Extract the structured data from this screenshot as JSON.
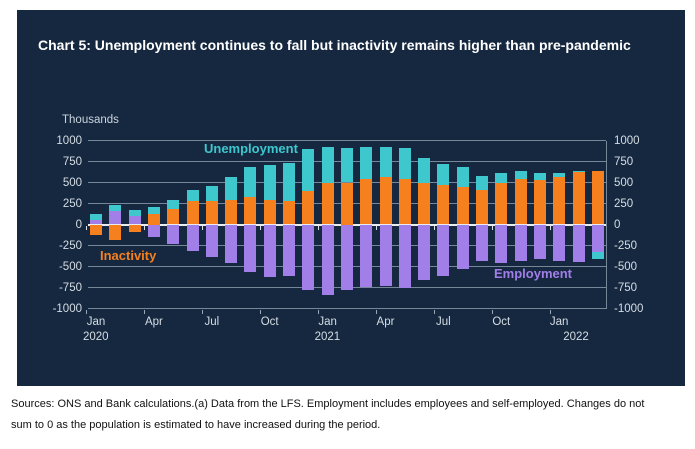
{
  "title": "Chart 5: Unemployment continues to fall but inactivity remains higher than pre-pandemic",
  "y_axis": {
    "unit_label": "Thousands",
    "ticks": [
      1000,
      750,
      500,
      250,
      0,
      -250,
      -500,
      -750,
      -1000
    ],
    "min": -1000,
    "max": 1000
  },
  "x_axis": {
    "ticks": [
      {
        "month": "Jan",
        "year": "2020",
        "month_index": 0
      },
      {
        "month": "Apr",
        "year": "",
        "month_index": 3
      },
      {
        "month": "Jul",
        "year": "",
        "month_index": 6
      },
      {
        "month": "Oct",
        "year": "",
        "month_index": 9
      },
      {
        "month": "Jan",
        "year": "2021",
        "month_index": 12
      },
      {
        "month": "Apr",
        "year": "",
        "month_index": 15
      },
      {
        "month": "Jul",
        "year": "",
        "month_index": 18
      },
      {
        "month": "Oct",
        "year": "",
        "month_index": 21
      },
      {
        "month": "Jan",
        "year": "2022",
        "month_index": 24
      }
    ]
  },
  "legend": {
    "unemployment": "Unemployment",
    "inactivity": "Inactivity",
    "employment": "Employment"
  },
  "colors": {
    "panel_background": "#152840",
    "unemployment": "#3EC7CD",
    "inactivity": "#F6801D",
    "employment": "#A27EE9",
    "gridline": "#77879A",
    "zero_line": "#E9EDF1",
    "axis_text": "#D6DDE4",
    "title_text": "#FFFFFF"
  },
  "chart_data": {
    "type": "bar",
    "stacked": true,
    "title": "Chart 5: Unemployment continues to fall but inactivity remains higher than pre-pandemic",
    "ylabel": "Thousands",
    "ylim": [
      -1000,
      1000
    ],
    "grid": true,
    "legend_position": "inside-plot",
    "stack_order": [
      "Employment",
      "Inactivity",
      "Unemployment"
    ],
    "categories": [
      "Jan 2020",
      "Feb 2020",
      "Mar 2020",
      "Apr 2020",
      "May 2020",
      "Jun 2020",
      "Jul 2020",
      "Aug 2020",
      "Sep 2020",
      "Oct 2020",
      "Nov 2020",
      "Dec 2020",
      "Jan 2021",
      "Feb 2021",
      "Mar 2021",
      "Apr 2021",
      "May 2021",
      "Jun 2021",
      "Jul 2021",
      "Aug 2021",
      "Sep 2021",
      "Oct 2021",
      "Nov 2021",
      "Dec 2021",
      "Jan 2022",
      "Feb 2022",
      "Mar 2022"
    ],
    "series": [
      {
        "name": "Unemployment",
        "color": "#3EC7CD",
        "values": [
          70,
          70,
          70,
          80,
          115,
          120,
          170,
          265,
          360,
          415,
          460,
          500,
          430,
          410,
          385,
          365,
          370,
          300,
          255,
          230,
          170,
          120,
          95,
          90,
          55,
          15,
          -80
        ]
      },
      {
        "name": "Inactivity",
        "color": "#F6801D",
        "values": [
          -120,
          -185,
          -95,
          125,
          180,
          285,
          285,
          295,
          325,
          295,
          275,
          395,
          490,
          500,
          540,
          560,
          540,
          490,
          470,
          450,
          410,
          490,
          545,
          525,
          560,
          620,
          635
        ]
      },
      {
        "name": "Employment",
        "color": "#A27EE9",
        "values": [
          50,
          160,
          100,
          -150,
          -230,
          -320,
          -385,
          -455,
          -570,
          -620,
          -615,
          -780,
          -835,
          -785,
          -745,
          -735,
          -755,
          -665,
          -615,
          -525,
          -435,
          -455,
          -430,
          -410,
          -440,
          -450,
          -330
        ]
      }
    ]
  },
  "footer": {
    "text": "Sources: ONS and Bank calculations.(a) Data from the LFS. Employment includes employees and self-employed. Changes do not sum to 0 as the population is estimated to have increased during the period."
  }
}
